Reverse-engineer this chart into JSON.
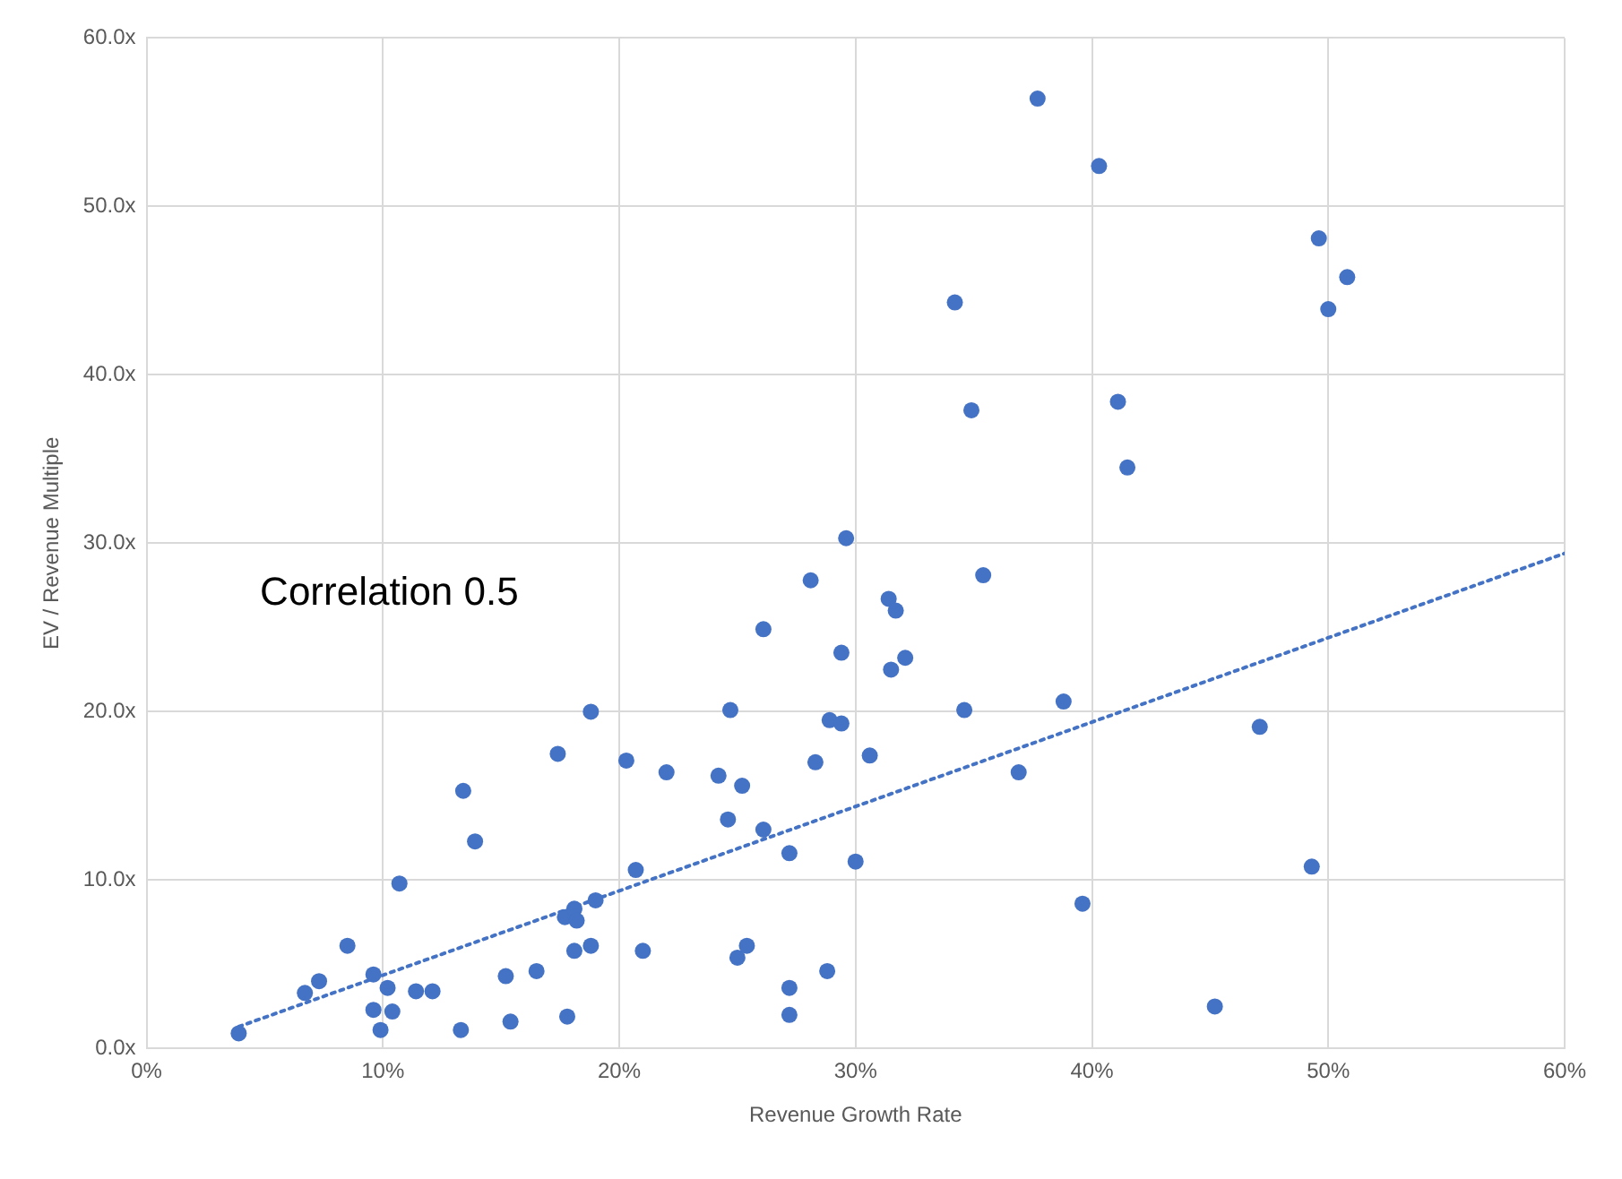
{
  "chart_data": {
    "type": "scatter",
    "xlabel": "Revenue Growth Rate",
    "ylabel": "EV / Revenue Multiple",
    "annotations": [
      "Correlation 0.5"
    ],
    "xlim": [
      0,
      60
    ],
    "ylim": [
      0,
      60
    ],
    "xticks": [
      {
        "value": 0,
        "label": "0%"
      },
      {
        "value": 10,
        "label": "10%"
      },
      {
        "value": 20,
        "label": "20%"
      },
      {
        "value": 30,
        "label": "30%"
      },
      {
        "value": 40,
        "label": "40%"
      },
      {
        "value": 50,
        "label": "50%"
      },
      {
        "value": 60,
        "label": "60%"
      }
    ],
    "yticks": [
      {
        "value": 0,
        "label": "0.0x"
      },
      {
        "value": 10,
        "label": "10.0x"
      },
      {
        "value": 20,
        "label": "20.0x"
      },
      {
        "value": 30,
        "label": "30.0x"
      },
      {
        "value": 40,
        "label": "40.0x"
      },
      {
        "value": 50,
        "label": "50.0x"
      },
      {
        "value": 60,
        "label": "60.0x"
      }
    ],
    "grid": true,
    "marker": "circle",
    "series": [
      {
        "color": "#4472c4",
        "x": [
          3.9,
          6.7,
          7.3,
          8.5,
          9.6,
          9.6,
          9.9,
          10.2,
          10.4,
          10.7,
          11.4,
          12.1,
          13.3,
          13.4,
          13.9,
          15.2,
          15.4,
          16.5,
          17.4,
          17.8,
          17.7,
          18.1,
          18.1,
          18.2,
          18.8,
          18.8,
          19.0,
          20.3,
          20.7,
          21.0,
          22.0,
          24.2,
          24.6,
          24.7,
          25.0,
          25.2,
          25.4,
          26.1,
          26.1,
          27.2,
          27.2,
          27.2,
          28.1,
          28.3,
          28.8,
          28.9,
          29.4,
          29.4,
          29.6,
          30.0,
          30.6,
          31.4,
          31.7,
          31.5,
          32.1,
          34.2,
          34.6,
          34.9,
          35.4,
          36.9,
          37.7,
          38.8,
          39.6,
          40.3,
          41.1,
          41.5,
          45.2,
          47.1,
          49.3,
          49.6,
          50.0,
          50.8
        ],
        "values": [
          0.9,
          3.3,
          4.0,
          6.1,
          4.4,
          2.3,
          1.1,
          3.6,
          2.2,
          9.8,
          3.4,
          3.4,
          1.1,
          15.3,
          12.3,
          4.3,
          1.6,
          4.6,
          17.5,
          1.9,
          7.8,
          8.3,
          5.8,
          7.6,
          6.1,
          20.0,
          8.8,
          17.1,
          10.6,
          5.8,
          16.4,
          16.2,
          13.6,
          20.1,
          5.4,
          15.6,
          6.1,
          13.0,
          24.9,
          2.0,
          3.6,
          11.6,
          27.8,
          17.0,
          4.6,
          19.5,
          19.3,
          23.5,
          30.3,
          11.1,
          17.4,
          26.7,
          26.0,
          22.5,
          23.2,
          44.3,
          20.1,
          37.9,
          28.1,
          16.4,
          56.4,
          20.6,
          8.6,
          52.4,
          38.4,
          34.5,
          2.5,
          19.1,
          10.8,
          48.1,
          43.9,
          45.8
        ]
      },
      {
        "type": "line",
        "color": "#4472c4",
        "line_style": "dotted",
        "marker": "none",
        "x": [
          3.9,
          60
        ],
        "values": [
          1.3,
          29.4
        ]
      }
    ]
  }
}
